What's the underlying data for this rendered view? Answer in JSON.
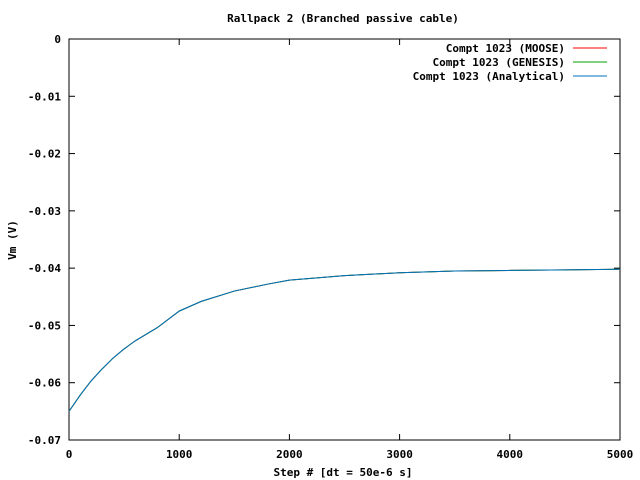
{
  "chart_data": {
    "type": "line",
    "title": "Rallpack 2 (Branched passive cable)",
    "xlabel": "Step # [dt = 50e-6 s]",
    "ylabel": "Vm (V)",
    "xlim": [
      0,
      5000
    ],
    "ylim": [
      -0.07,
      0
    ],
    "x_ticks": [
      0,
      1000,
      2000,
      3000,
      4000,
      5000
    ],
    "x_tick_labels": [
      "0",
      "1000",
      "2000",
      "3000",
      "4000",
      "5000"
    ],
    "y_ticks": [
      0,
      -0.01,
      -0.02,
      -0.03,
      -0.04,
      -0.05,
      -0.06,
      -0.07
    ],
    "y_tick_labels": [
      "0",
      "-0.01",
      "-0.02",
      "-0.03",
      "-0.04",
      "-0.05",
      "-0.06",
      "-0.07"
    ],
    "grid": false,
    "legend_position": "top-right",
    "x": [
      0,
      100,
      200,
      300,
      400,
      500,
      600,
      800,
      1000,
      1200,
      1500,
      1800,
      2000,
      2500,
      3000,
      3500,
      4000,
      4500,
      5000
    ],
    "series": [
      {
        "name": "Compt 1023 (MOOSE)",
        "color": "#ff0000",
        "values": [
          -0.065,
          -0.0622,
          -0.0597,
          -0.0576,
          -0.0557,
          -0.0541,
          -0.0527,
          -0.0504,
          -0.0475,
          -0.0458,
          -0.044,
          -0.0428,
          -0.0421,
          -0.0413,
          -0.0408,
          -0.0405,
          -0.0404,
          -0.0403,
          -0.0402
        ]
      },
      {
        "name": "Compt 1023 (GENESIS)",
        "color": "#00a000",
        "values": [
          -0.065,
          -0.0622,
          -0.0597,
          -0.0576,
          -0.0557,
          -0.0541,
          -0.0527,
          -0.0504,
          -0.0475,
          -0.0458,
          -0.044,
          -0.0428,
          -0.0421,
          -0.0413,
          -0.0408,
          -0.0405,
          -0.0404,
          -0.0403,
          -0.0402
        ]
      },
      {
        "name": "Compt 1023 (Analytical)",
        "color": "#0070c0",
        "values": [
          -0.065,
          -0.0622,
          -0.0597,
          -0.0576,
          -0.0557,
          -0.0541,
          -0.0527,
          -0.0504,
          -0.0475,
          -0.0458,
          -0.044,
          -0.0428,
          -0.0421,
          -0.0413,
          -0.0408,
          -0.0405,
          -0.0404,
          -0.0403,
          -0.0402
        ]
      }
    ]
  }
}
